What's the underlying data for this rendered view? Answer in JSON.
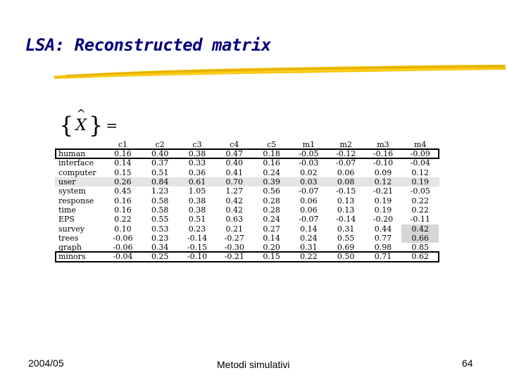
{
  "slide": {
    "title": "LSA: Reconstructed matrix",
    "footer_left": "2004/05",
    "footer_center": "Metodi simulativi",
    "footer_right": "64"
  },
  "formula": {
    "symbol": "X",
    "equals": "="
  },
  "matrix": {
    "columns": [
      "c1",
      "c2",
      "c3",
      "c4",
      "c5",
      "m1",
      "m2",
      "m3",
      "m4"
    ],
    "rows": [
      {
        "label": "human",
        "values": [
          "0.16",
          "0.40",
          "0.38",
          "0.47",
          "0.18",
          "-0.05",
          "-0.12",
          "-0.16",
          "-0.09"
        ]
      },
      {
        "label": "interface",
        "values": [
          "0.14",
          "0.37",
          "0.33",
          "0.40",
          "0.16",
          "-0.03",
          "-0.07",
          "-0.10",
          "-0.04"
        ]
      },
      {
        "label": "computer",
        "values": [
          "0.15",
          "0.51",
          "0.36",
          "0.41",
          "0.24",
          "0.02",
          "0.06",
          "0.09",
          "0.12"
        ]
      },
      {
        "label": "user",
        "values": [
          "0.26",
          "0.84",
          "0.61",
          "0.70",
          "0.39",
          "0.03",
          "0.08",
          "0.12",
          "0.19"
        ]
      },
      {
        "label": "system",
        "values": [
          "0.45",
          "1.23",
          "1.05",
          "1.27",
          "0.56",
          "-0.07",
          "-0.15",
          "-0.21",
          "-0.05"
        ]
      },
      {
        "label": "response",
        "values": [
          "0.16",
          "0.58",
          "0.38",
          "0.42",
          "0.28",
          "0.06",
          "0.13",
          "0.19",
          "0.22"
        ]
      },
      {
        "label": "time",
        "values": [
          "0.16",
          "0.58",
          "0.38",
          "0.42",
          "0.28",
          "0.06",
          "0.13",
          "0.19",
          "0.22"
        ]
      },
      {
        "label": "EPS",
        "values": [
          "0.22",
          "0.55",
          "0.51",
          "0.63",
          "0.24",
          "-0.07",
          "-0.14",
          "-0.20",
          "-0.11"
        ]
      },
      {
        "label": "survey",
        "values": [
          "0.10",
          "0.53",
          "0.23",
          "0.21",
          "0.27",
          "0.14",
          "0.31",
          "0.44",
          "0.42"
        ]
      },
      {
        "label": "trees",
        "values": [
          "-0.06",
          "0.23",
          "-0.14",
          "-0.27",
          "0.14",
          "0.24",
          "0.55",
          "0.77",
          "0.66"
        ]
      },
      {
        "label": "graph",
        "values": [
          "-0.06",
          "0.34",
          "-0.15",
          "-0.30",
          "0.20",
          "0.31",
          "0.69",
          "0.98",
          "0.85"
        ]
      },
      {
        "label": "minors",
        "values": [
          "-0.04",
          "0.25",
          "-0.10",
          "-0.21",
          "0.15",
          "0.22",
          "0.50",
          "0.71",
          "0.62"
        ]
      }
    ],
    "boxed_rows": [
      "human",
      "minors"
    ],
    "shaded_rows": [
      "user"
    ],
    "highlighted_cells": [
      {
        "row": "survey",
        "col": "m4"
      },
      {
        "row": "trees",
        "col": "m4"
      }
    ]
  },
  "colors": {
    "title": "#00007a",
    "underline": "#f2c200",
    "shade": "#e4e4e4",
    "cell_highlight": "#d6d6d6"
  }
}
